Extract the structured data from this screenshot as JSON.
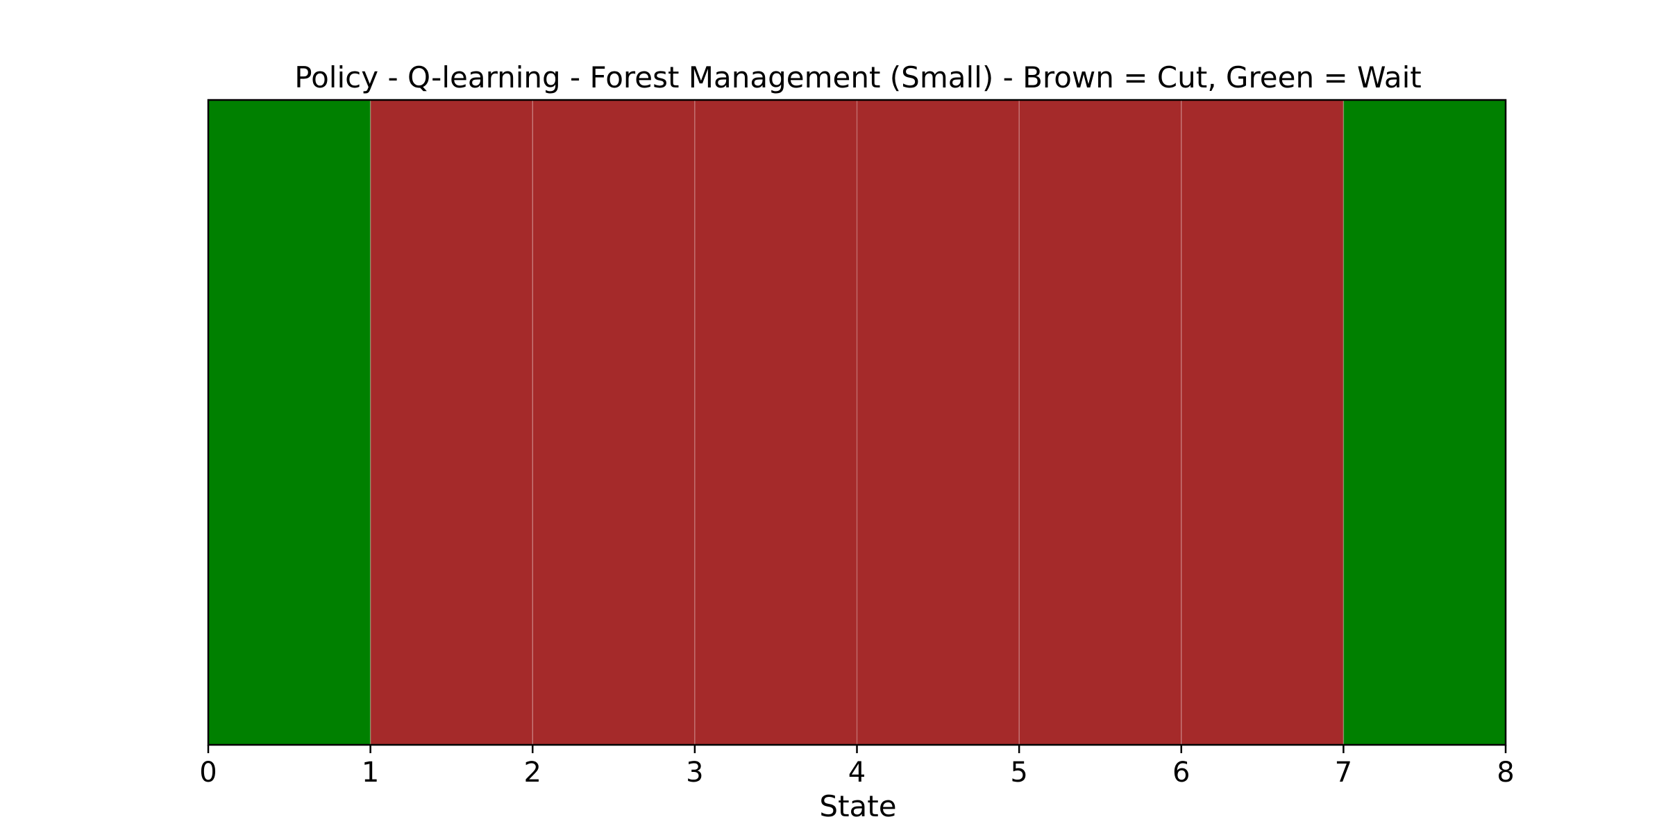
{
  "chart_data": {
    "type": "heatmap",
    "title": "Policy - Q-learning - Forest Management (Small) - Brown = Cut, Green = Wait",
    "xlabel": "State",
    "ylabel": "",
    "xlim": [
      0,
      8
    ],
    "xticks": [
      "0",
      "1",
      "2",
      "3",
      "4",
      "5",
      "6",
      "7",
      "8"
    ],
    "grid": false,
    "legend": "none",
    "states": [
      0,
      1,
      2,
      3,
      4,
      5,
      6,
      7
    ],
    "policy": [
      "Wait",
      "Cut",
      "Cut",
      "Cut",
      "Cut",
      "Cut",
      "Cut",
      "Wait"
    ],
    "colors": {
      "Cut": "#a52a2a",
      "Wait": "#008000"
    }
  }
}
